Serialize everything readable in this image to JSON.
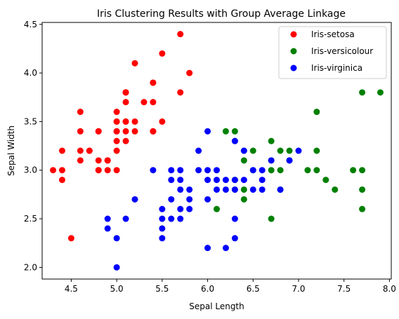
{
  "chart_data": {
    "type": "scatter",
    "title": "Iris Clustering Results with Group Average Linkage",
    "xlabel": "Sepal Length",
    "ylabel": "Sepal Width",
    "xlim": [
      4.18,
      8.02
    ],
    "ylim": [
      1.88,
      4.52
    ],
    "xticks": [
      "4.5",
      "5.0",
      "5.5",
      "6.0",
      "6.5",
      "7.0",
      "7.5",
      "8.0"
    ],
    "yticks": [
      "2.0",
      "2.5",
      "3.0",
      "3.5",
      "4.0",
      "4.5"
    ],
    "grid": false,
    "legend_position": "top-right",
    "series": [
      {
        "name": "Iris-setosa",
        "color": "#ff0000",
        "points": [
          [
            5.1,
            3.5
          ],
          [
            4.9,
            3.0
          ],
          [
            4.7,
            3.2
          ],
          [
            4.6,
            3.1
          ],
          [
            5.0,
            3.6
          ],
          [
            5.4,
            3.9
          ],
          [
            4.6,
            3.4
          ],
          [
            5.0,
            3.4
          ],
          [
            4.4,
            2.9
          ],
          [
            4.9,
            3.1
          ],
          [
            5.4,
            3.7
          ],
          [
            4.8,
            3.4
          ],
          [
            4.8,
            3.0
          ],
          [
            4.3,
            3.0
          ],
          [
            5.8,
            4.0
          ],
          [
            5.7,
            4.4
          ],
          [
            5.4,
            3.9
          ],
          [
            5.1,
            3.5
          ],
          [
            5.7,
            3.8
          ],
          [
            5.1,
            3.8
          ],
          [
            5.4,
            3.4
          ],
          [
            5.1,
            3.7
          ],
          [
            4.6,
            3.6
          ],
          [
            5.1,
            3.3
          ],
          [
            4.8,
            3.4
          ],
          [
            5.0,
            3.0
          ],
          [
            5.0,
            3.4
          ],
          [
            5.2,
            3.5
          ],
          [
            5.2,
            3.4
          ],
          [
            4.7,
            3.2
          ],
          [
            4.8,
            3.1
          ],
          [
            5.4,
            3.4
          ],
          [
            5.2,
            4.1
          ],
          [
            5.5,
            4.2
          ],
          [
            4.9,
            3.1
          ],
          [
            5.0,
            3.2
          ],
          [
            5.5,
            3.5
          ],
          [
            4.9,
            3.1
          ],
          [
            4.4,
            3.0
          ],
          [
            5.1,
            3.4
          ],
          [
            5.0,
            3.5
          ],
          [
            4.5,
            2.3
          ],
          [
            4.4,
            3.2
          ],
          [
            5.0,
            3.5
          ],
          [
            5.1,
            3.8
          ],
          [
            4.8,
            3.0
          ],
          [
            5.1,
            3.8
          ],
          [
            4.6,
            3.2
          ],
          [
            5.3,
            3.7
          ],
          [
            5.0,
            3.3
          ]
        ]
      },
      {
        "name": "Iris-versicolour",
        "color": "#008000",
        "points": [
          [
            7.7,
            3.8
          ],
          [
            7.9,
            3.8
          ],
          [
            7.2,
            3.6
          ],
          [
            6.2,
            3.4
          ],
          [
            6.3,
            3.4
          ],
          [
            6.3,
            3.3
          ],
          [
            6.7,
            3.3
          ],
          [
            6.5,
            3.2
          ],
          [
            6.8,
            3.2
          ],
          [
            7.2,
            3.2
          ],
          [
            6.9,
            3.2
          ],
          [
            6.4,
            3.2
          ],
          [
            6.4,
            3.1
          ],
          [
            6.7,
            3.1
          ],
          [
            6.7,
            3.0
          ],
          [
            6.5,
            3.0
          ],
          [
            6.8,
            3.0
          ],
          [
            7.1,
            3.0
          ],
          [
            7.2,
            3.0
          ],
          [
            7.6,
            3.0
          ],
          [
            7.7,
            3.0
          ],
          [
            6.9,
            3.1
          ],
          [
            7.3,
            2.9
          ],
          [
            6.3,
            2.9
          ],
          [
            6.4,
            2.8
          ],
          [
            6.3,
            2.8
          ],
          [
            6.8,
            2.8
          ],
          [
            7.4,
            2.8
          ],
          [
            7.7,
            2.8
          ],
          [
            6.4,
            2.7
          ],
          [
            6.1,
            2.6
          ],
          [
            7.7,
            2.6
          ],
          [
            6.7,
            2.5
          ]
        ]
      },
      {
        "name": "Iris-virginica",
        "color": "#0000ff",
        "points": [
          [
            6.0,
            3.4
          ],
          [
            6.3,
            3.3
          ],
          [
            6.4,
            3.2
          ],
          [
            5.9,
            3.2
          ],
          [
            7.0,
            3.2
          ],
          [
            6.7,
            3.1
          ],
          [
            6.9,
            3.1
          ],
          [
            6.6,
            3.0
          ],
          [
            5.4,
            3.0
          ],
          [
            5.6,
            3.0
          ],
          [
            5.7,
            3.0
          ],
          [
            5.9,
            3.0
          ],
          [
            6.0,
            3.0
          ],
          [
            6.1,
            3.0
          ],
          [
            6.6,
            2.9
          ],
          [
            6.5,
            3.0
          ],
          [
            6.2,
            2.9
          ],
          [
            5.6,
            2.9
          ],
          [
            6.1,
            2.9
          ],
          [
            6.0,
            2.9
          ],
          [
            5.7,
            2.9
          ],
          [
            6.4,
            2.9
          ],
          [
            6.3,
            2.9
          ],
          [
            5.7,
            2.8
          ],
          [
            5.8,
            2.8
          ],
          [
            6.1,
            2.8
          ],
          [
            6.2,
            2.8
          ],
          [
            6.3,
            2.8
          ],
          [
            6.5,
            2.8
          ],
          [
            6.6,
            2.8
          ],
          [
            6.8,
            2.8
          ],
          [
            5.6,
            2.7
          ],
          [
            5.8,
            2.7
          ],
          [
            5.2,
            2.7
          ],
          [
            6.0,
            2.7
          ],
          [
            5.5,
            2.6
          ],
          [
            5.7,
            2.6
          ],
          [
            5.8,
            2.6
          ],
          [
            5.6,
            2.5
          ],
          [
            5.7,
            2.5
          ],
          [
            4.9,
            2.5
          ],
          [
            5.1,
            2.5
          ],
          [
            5.5,
            2.5
          ],
          [
            6.3,
            2.5
          ],
          [
            4.9,
            2.4
          ],
          [
            5.5,
            2.4
          ],
          [
            5.0,
            2.3
          ],
          [
            5.5,
            2.3
          ],
          [
            6.3,
            2.3
          ],
          [
            6.0,
            2.2
          ],
          [
            6.2,
            2.2
          ],
          [
            5.0,
            2.0
          ]
        ]
      }
    ]
  }
}
